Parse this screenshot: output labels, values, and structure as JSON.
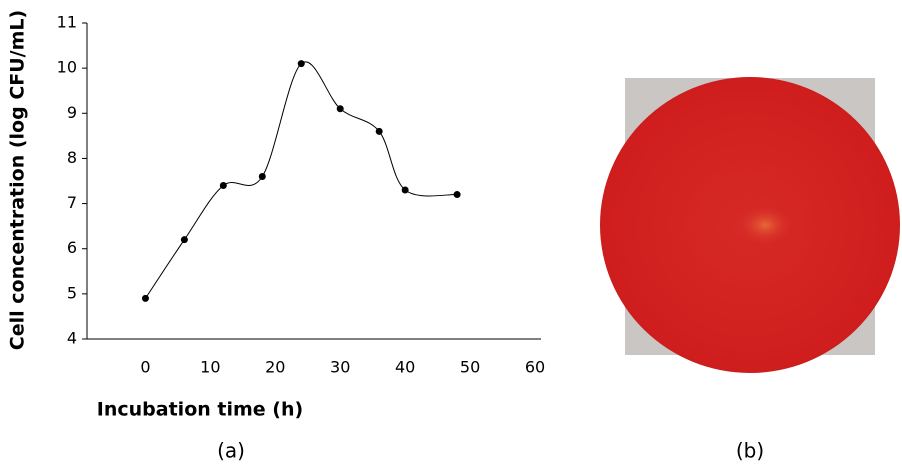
{
  "chart_data": {
    "type": "line",
    "x_label": "Incubation time (h)",
    "y_label": "Cell concentration (log CFU/mL)",
    "panel_label": "(a)",
    "x": [
      0,
      6,
      12,
      18,
      24,
      30,
      36,
      40,
      48
    ],
    "series": [
      {
        "color": "#000000",
        "values": [
          4.9,
          6.2,
          7.4,
          7.6,
          10.1,
          9.1,
          8.6,
          7.3,
          7.2
        ]
      }
    ],
    "xlim": [
      -9,
      60
    ],
    "xticks": [
      0,
      10,
      20,
      30,
      40,
      50,
      60
    ],
    "ylim": [
      4,
      11
    ],
    "yticks": [
      4,
      5,
      6,
      7,
      8,
      9,
      10,
      11
    ],
    "smooth": true,
    "grid": false
  },
  "photo": {
    "panel_label": "(b)"
  }
}
